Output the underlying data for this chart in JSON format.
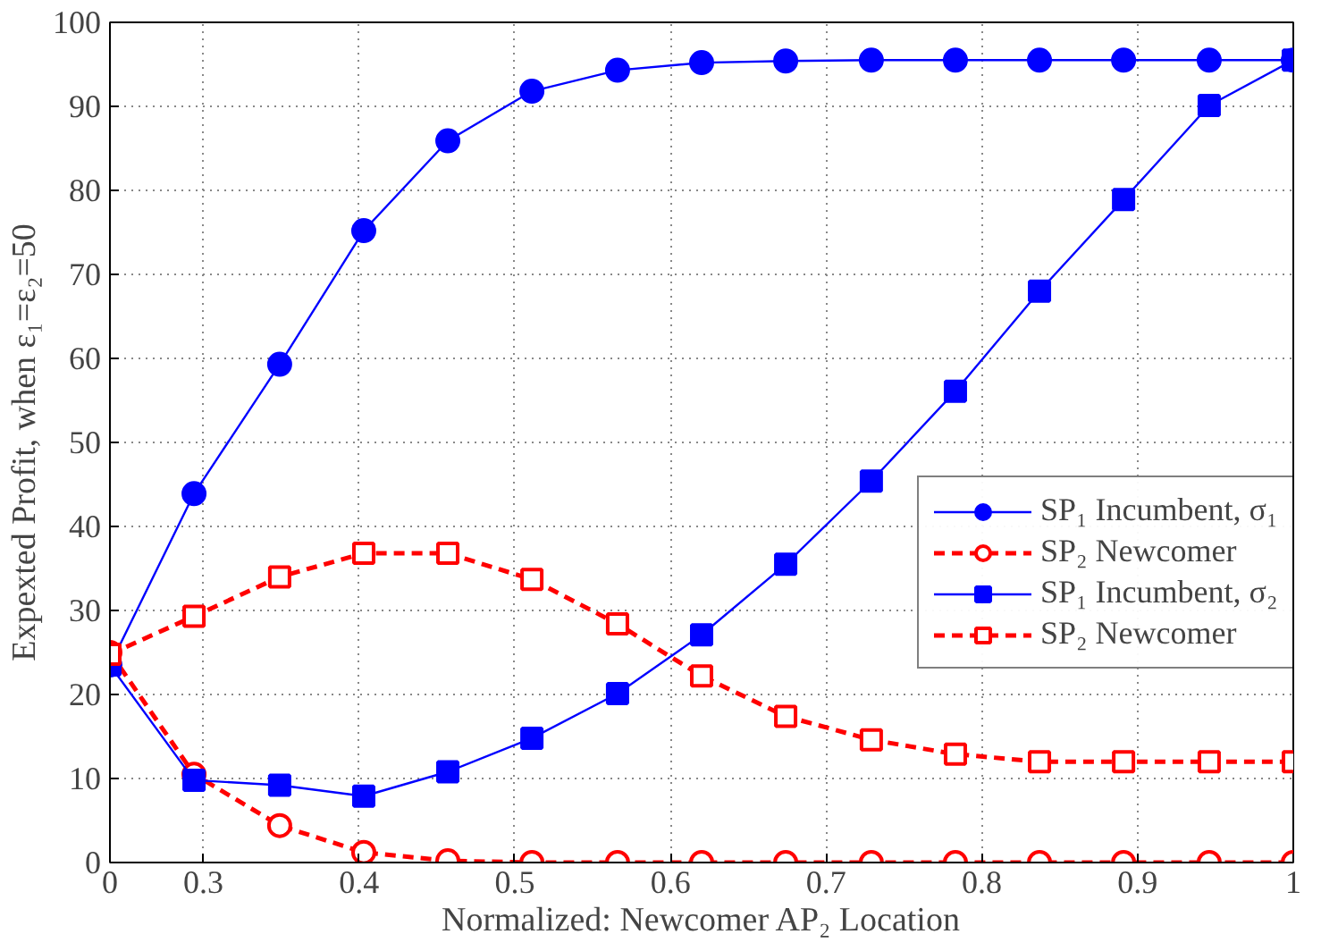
{
  "chart_data": {
    "type": "line",
    "xlabel": "Normalized: Newcomer AP₂ Location",
    "ylabel": "Expexted Profit, when ε₁=ε₂=50",
    "x": [
      0.24,
      0.294,
      0.349,
      0.403,
      0.457,
      0.511,
      0.566,
      0.62,
      0.674,
      0.729,
      0.783,
      0.837,
      0.891,
      0.946,
      1.0
    ],
    "series": [
      {
        "name": "SP₁ Incumbent, σ₁",
        "color": "#0000ff",
        "marker": "circle",
        "line_style": "solid",
        "values": [
          23.5,
          43.9,
          59.3,
          75.2,
          85.9,
          91.8,
          94.3,
          95.2,
          95.4,
          95.5,
          95.5,
          95.5,
          95.5,
          95.5,
          95.5
        ]
      },
      {
        "name": "SP₂ Newcomer",
        "color": "#ff0000",
        "marker": "circle",
        "line_style": "dashed",
        "values": [
          25,
          10.5,
          4.4,
          1.2,
          0.2,
          0,
          0,
          0,
          0,
          0,
          0,
          0,
          0,
          0,
          0
        ]
      },
      {
        "name": "SP₁ Incumbent, σ₂",
        "color": "#0000ff",
        "marker": "square",
        "line_style": "solid",
        "values": [
          23.5,
          9.8,
          9.2,
          7.9,
          10.8,
          14.8,
          20.1,
          27.1,
          35.5,
          45.4,
          56.1,
          68.0,
          78.9,
          90.1,
          95.5
        ]
      },
      {
        "name": "SP₂ Newcomer",
        "color": "#ff0000",
        "marker": "square",
        "line_style": "dashed",
        "values": [
          24.8,
          29.3,
          34.0,
          36.8,
          36.8,
          33.7,
          28.4,
          22.2,
          17.4,
          14.6,
          12.9,
          12.0,
          12.0,
          12.0,
          12.0
        ]
      }
    ],
    "xlim": [
      0.24,
      1
    ],
    "xticks": [
      {
        "value": 0.24,
        "label": "0"
      },
      0.3,
      0.4,
      0.5,
      0.6,
      0.7,
      0.8,
      0.9,
      {
        "value": 1,
        "label": "1"
      }
    ],
    "ylim": [
      0,
      100
    ],
    "yticks": [
      0,
      10,
      20,
      30,
      40,
      50,
      60,
      70,
      80,
      90,
      100
    ],
    "grid": true,
    "legend": "right"
  }
}
